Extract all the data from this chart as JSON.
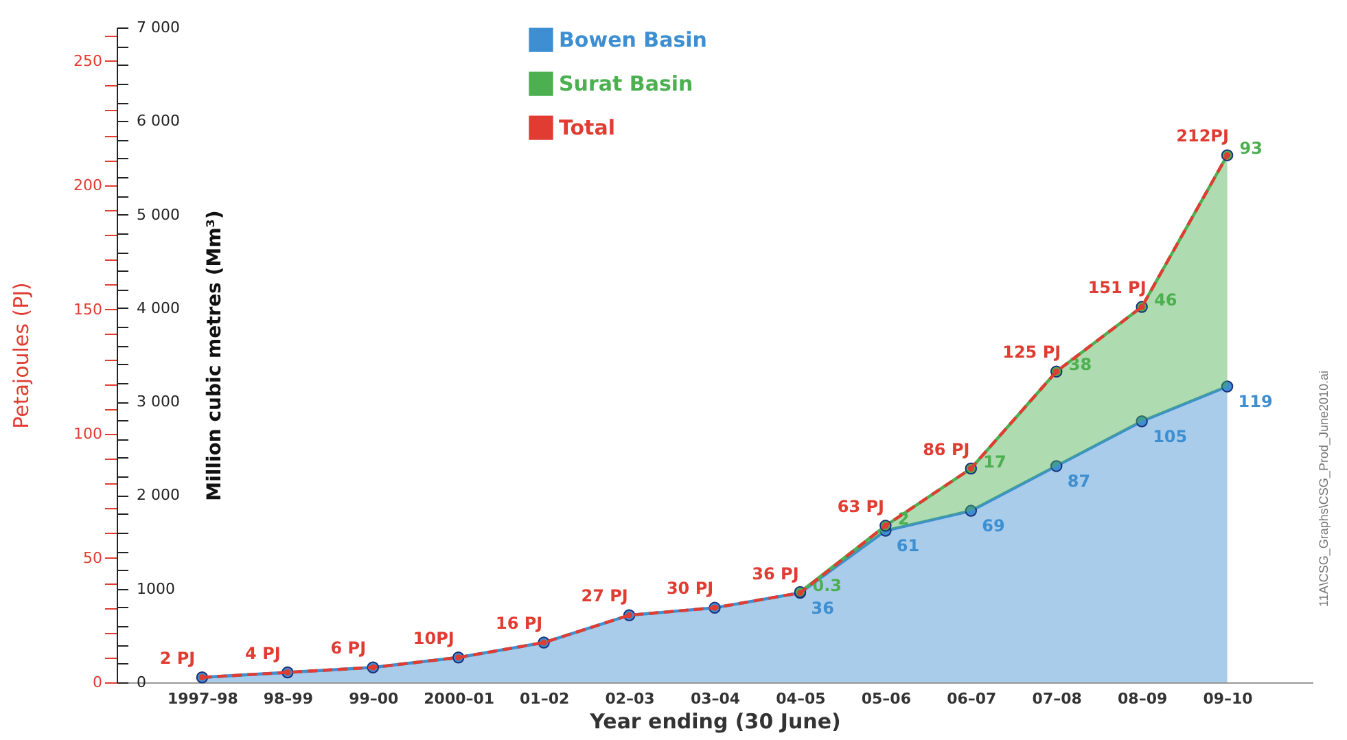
{
  "chart_data": {
    "type": "area",
    "stacked": true,
    "xlabel": "Year ending (30 June)",
    "ylabel": "Petajoules (PJ)",
    "y2label": "Million cubic metres (Mm³)",
    "categories": [
      "1997–98",
      "98–99",
      "99–00",
      "2000–01",
      "01–02",
      "02–03",
      "03–04",
      "04–05",
      "05–06",
      "06–07",
      "07–08",
      "08–09",
      "09–10"
    ],
    "series": [
      {
        "name": "Bowen Basin",
        "color": "#3d8fd1",
        "values": [
          2,
          4,
          6,
          10,
          16,
          27,
          30,
          36,
          61,
          69,
          87,
          105,
          119
        ],
        "value_labels": [
          null,
          null,
          null,
          null,
          null,
          null,
          null,
          "36",
          "61",
          "69",
          "87",
          "105",
          "119"
        ]
      },
      {
        "name": "Surat Basin",
        "color": "#4caf50",
        "values": [
          null,
          null,
          null,
          null,
          null,
          null,
          null,
          0.3,
          2,
          17,
          38,
          46,
          93
        ],
        "value_labels": [
          null,
          null,
          null,
          null,
          null,
          null,
          null,
          "0.3",
          "2",
          "17",
          "38",
          "46",
          "93"
        ]
      },
      {
        "name": "Total",
        "type": "line",
        "color": "#e03c31",
        "line_style": "dashed",
        "values": [
          2,
          4,
          6,
          10,
          16,
          27,
          30,
          36,
          63,
          86,
          125,
          151,
          212
        ],
        "value_labels": [
          "2 PJ",
          "4 PJ",
          "6 PJ",
          "10PJ",
          "16 PJ",
          "27 PJ",
          "30 PJ",
          "36 PJ",
          "63 PJ",
          "86 PJ",
          "125 PJ",
          "151 PJ",
          "212PJ"
        ]
      }
    ],
    "ylim": [
      0,
      263.4
    ],
    "yticks": [
      0,
      {
        "value": 10,
        "label": null
      },
      {
        "value": 20,
        "label": null
      },
      {
        "value": 30,
        "label": null
      },
      {
        "value": 40,
        "label": null
      },
      50,
      {
        "value": 60,
        "label": null
      },
      {
        "value": 70,
        "label": null
      },
      {
        "value": 80,
        "label": null
      },
      {
        "value": 90,
        "label": null
      },
      100,
      {
        "value": 110,
        "label": null
      },
      {
        "value": 120,
        "label": null
      },
      {
        "value": 130,
        "label": null
      },
      {
        "value": 140,
        "label": null
      },
      150,
      {
        "value": 160,
        "label": null
      },
      {
        "value": 170,
        "label": null
      },
      {
        "value": 180,
        "label": null
      },
      {
        "value": 190,
        "label": null
      },
      200,
      {
        "value": 210,
        "label": null
      },
      {
        "value": 220,
        "label": null
      },
      {
        "value": 230,
        "label": null
      },
      {
        "value": 240,
        "label": null
      },
      250,
      {
        "value": 260,
        "label": null
      }
    ],
    "y2lim": [
      0,
      7000
    ],
    "y2ticks": [
      0,
      {
        "value": 200,
        "label": null
      },
      {
        "value": 400,
        "label": null
      },
      {
        "value": 600,
        "label": null
      },
      {
        "value": 800,
        "label": null
      },
      1000,
      {
        "value": 1200,
        "label": null
      },
      {
        "value": 1400,
        "label": null
      },
      {
        "value": 1600,
        "label": null
      },
      {
        "value": 1800,
        "label": null
      },
      {
        "value": 2000,
        "label": "2 000"
      },
      {
        "value": 2200,
        "label": null
      },
      {
        "value": 2400,
        "label": null
      },
      {
        "value": 2600,
        "label": null
      },
      {
        "value": 2800,
        "label": null
      },
      {
        "value": 3000,
        "label": "3 000"
      },
      {
        "value": 3200,
        "label": null
      },
      {
        "value": 3400,
        "label": null
      },
      {
        "value": 3600,
        "label": null
      },
      {
        "value": 3800,
        "label": null
      },
      {
        "value": 4000,
        "label": "4 000"
      },
      {
        "value": 4200,
        "label": null
      },
      {
        "value": 4400,
        "label": null
      },
      {
        "value": 4600,
        "label": null
      },
      {
        "value": 4800,
        "label": null
      },
      {
        "value": 5000,
        "label": "5 000"
      },
      {
        "value": 5200,
        "label": null
      },
      {
        "value": 5400,
        "label": null
      },
      {
        "value": 5600,
        "label": null
      },
      {
        "value": 5800,
        "label": null
      },
      {
        "value": 6000,
        "label": "6 000"
      },
      {
        "value": 6200,
        "label": null
      },
      {
        "value": 6400,
        "label": null
      },
      {
        "value": 6600,
        "label": null
      },
      {
        "value": 6800,
        "label": null
      },
      {
        "value": 7000,
        "label": "7 000"
      }
    ],
    "grid": false,
    "legend": "top",
    "marker": "circle",
    "annotations": [
      "11A\\CSG_Graphs\\CSG_Prod_June2010.ai"
    ]
  }
}
